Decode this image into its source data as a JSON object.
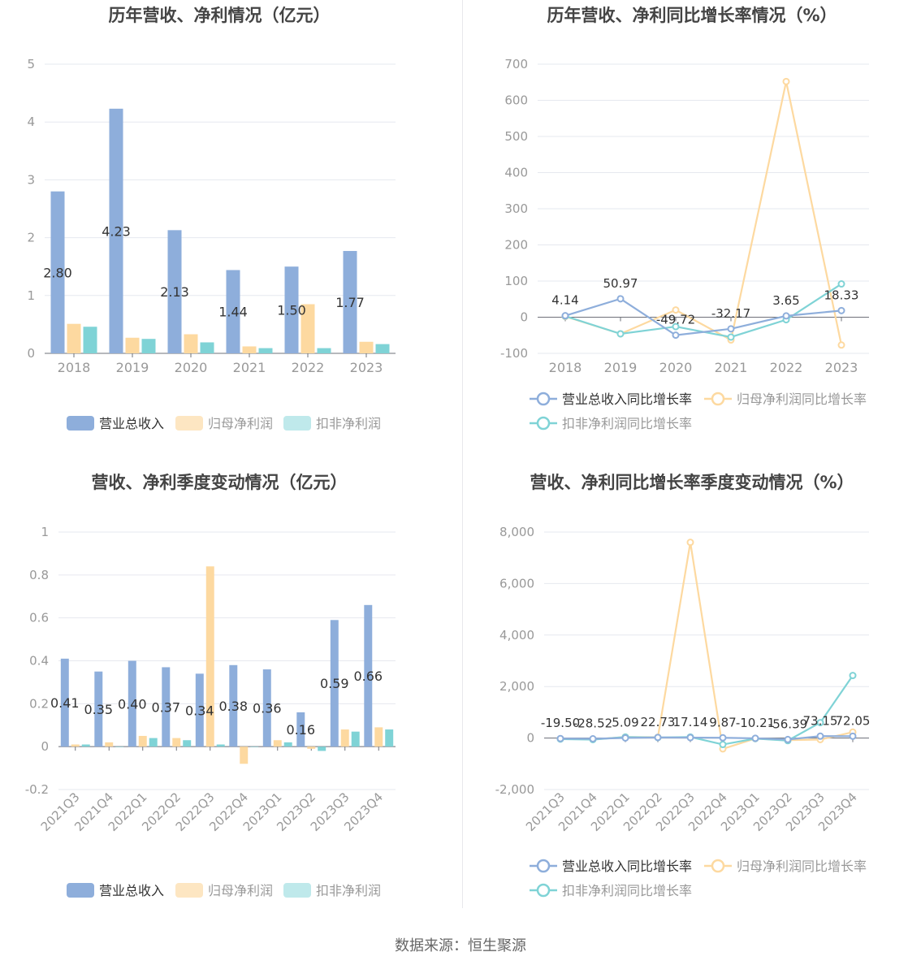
{
  "source": "数据来源：恒生聚源",
  "colors": {
    "revenue": "#8eaedb",
    "net_profit": "#fdd9a0",
    "deducted_profit": "#7fd3d6",
    "revenue_legend": "#8eaedb",
    "net_profit_legend": "#fde6c2",
    "deducted_profit_legend": "#bfe9eb",
    "grid": "#e6e8ef",
    "axis_text": "#999999",
    "title": "#444444"
  },
  "chart_data": [
    {
      "type": "bar",
      "title": "历年营收、净利情况（亿元）",
      "categories": [
        "2018",
        "2019",
        "2020",
        "2021",
        "2022",
        "2023"
      ],
      "ylim": [
        0,
        5
      ],
      "yticks": [
        "0",
        "1",
        "2",
        "3",
        "4",
        "5"
      ],
      "ytick_values": [
        0,
        1,
        2,
        3,
        4,
        5
      ],
      "series": [
        {
          "name": "营业总收入",
          "values": [
            2.8,
            4.23,
            2.13,
            1.44,
            1.5,
            1.77
          ],
          "labels": [
            "2.80",
            "4.23",
            "2.13",
            "1.44",
            "1.50",
            "1.77"
          ]
        },
        {
          "name": "归母净利润",
          "values": [
            0.51,
            0.27,
            0.33,
            0.12,
            0.85,
            0.2
          ]
        },
        {
          "name": "扣非净利润",
          "values": [
            0.46,
            0.25,
            0.19,
            0.09,
            0.09,
            0.16
          ]
        }
      ],
      "legend": "bottom",
      "grid": true
    },
    {
      "type": "line",
      "title": "历年营收、净利同比增长率情况（%）",
      "categories": [
        "2018",
        "2019",
        "2020",
        "2021",
        "2022",
        "2023"
      ],
      "ylim": [
        -100,
        700
      ],
      "yticks": [
        "-100",
        "0",
        "100",
        "200",
        "300",
        "400",
        "500",
        "600",
        "700"
      ],
      "ytick_values": [
        -100,
        0,
        100,
        200,
        300,
        400,
        500,
        600,
        700
      ],
      "series": [
        {
          "name": "营业总收入同比增长率",
          "values": [
            4.14,
            50.97,
            -49.72,
            -32.17,
            3.65,
            18.33
          ],
          "labels": [
            "4.14",
            "50.97",
            "-49.72",
            "-32.17",
            "3.65",
            "18.33"
          ]
        },
        {
          "name": "归母净利润同比增长率",
          "values": [
            2,
            -46,
            20,
            -63,
            652,
            -77
          ]
        },
        {
          "name": "扣非净利润同比增长率",
          "values": [
            3,
            -46,
            -26,
            -55,
            -7,
            92
          ]
        }
      ],
      "legend": "bottom",
      "grid": true
    },
    {
      "type": "bar",
      "title": "营收、净利季度变动情况（亿元）",
      "categories": [
        "2021Q3",
        "2021Q4",
        "2022Q1",
        "2022Q2",
        "2022Q3",
        "2022Q4",
        "2023Q1",
        "2023Q2",
        "2023Q3",
        "2023Q4"
      ],
      "ylim": [
        -0.2,
        1
      ],
      "yticks": [
        "-0.2",
        "0",
        "0.2",
        "0.4",
        "0.6",
        "0.8",
        "1"
      ],
      "ytick_values": [
        -0.2,
        0,
        0.2,
        0.4,
        0.6,
        0.8,
        1
      ],
      "series": [
        {
          "name": "营业总收入",
          "values": [
            0.41,
            0.35,
            0.4,
            0.37,
            0.34,
            0.38,
            0.36,
            0.16,
            0.59,
            0.66
          ],
          "labels": [
            "0.41",
            "0.35",
            "0.40",
            "0.37",
            "0.34",
            "0.38",
            "0.36",
            "0.16",
            "0.59",
            "0.66"
          ]
        },
        {
          "name": "归母净利润",
          "values": [
            0.01,
            0.02,
            0.05,
            0.04,
            0.84,
            -0.08,
            0.03,
            -0.01,
            0.08,
            0.09
          ]
        },
        {
          "name": "扣非净利润",
          "values": [
            0.01,
            0.0,
            0.04,
            0.03,
            0.01,
            0.0,
            0.02,
            -0.02,
            0.07,
            0.08
          ]
        }
      ],
      "legend": "bottom",
      "grid": true
    },
    {
      "type": "line",
      "title": "营收、净利同比增长率季度变动情况（%）",
      "categories": [
        "2021Q3",
        "2021Q4",
        "2022Q1",
        "2022Q2",
        "2022Q3",
        "2022Q4",
        "2023Q1",
        "2023Q2",
        "2023Q3",
        "2023Q4"
      ],
      "ylim": [
        -2000,
        8000
      ],
      "yticks": [
        "-2,000",
        "0",
        "2,000",
        "4,000",
        "6,000",
        "8,000"
      ],
      "ytick_values": [
        -2000,
        0,
        2000,
        4000,
        6000,
        8000
      ],
      "series": [
        {
          "name": "营业总收入同比增长率",
          "values": [
            -19.5,
            -28.52,
            5.09,
            22.73,
            17.14,
            9.87,
            -10.21,
            -56.39,
            73.15,
            72.05
          ],
          "labels": [
            "-19.50",
            "-28.52",
            "5.09",
            "22.73",
            "17.14",
            "9.87",
            "-10.21",
            "-56.39",
            "73.15",
            "72.05"
          ]
        },
        {
          "name": "归母净利润同比增长率",
          "values": [
            -30,
            -50,
            40,
            30,
            7600,
            -420,
            -20,
            -80,
            -60,
            230
          ]
        },
        {
          "name": "扣非净利润同比增长率",
          "values": [
            -40,
            -60,
            40,
            20,
            40,
            -250,
            -20,
            -100,
            600,
            2430
          ]
        }
      ],
      "legend": "bottom",
      "grid": true
    }
  ]
}
